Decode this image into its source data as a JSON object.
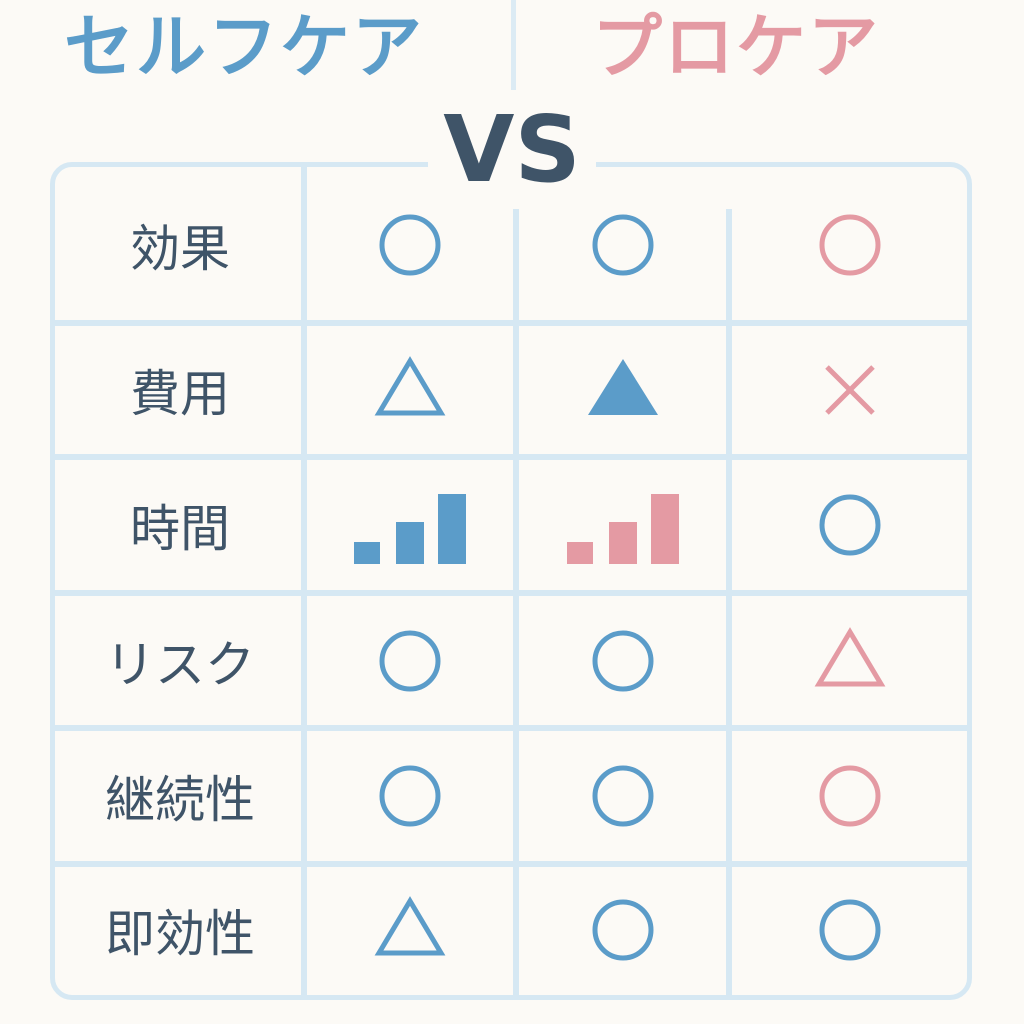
{
  "header": {
    "self_title": "セルフケア",
    "pro_title": "プロケア",
    "vs": "VS"
  },
  "colors": {
    "blue": "#5b9cc9",
    "pink": "#e49aa3",
    "text": "#3f5468",
    "grid": "#d6e8f3"
  },
  "rows": [
    {
      "label": "効果",
      "marks": [
        {
          "shape": "circle",
          "color": "blue"
        },
        {
          "shape": "circle",
          "color": "blue"
        },
        {
          "shape": "circle",
          "color": "pink"
        }
      ]
    },
    {
      "label": "費用",
      "marks": [
        {
          "shape": "triangle",
          "color": "blue"
        },
        {
          "shape": "triangle-filled",
          "color": "blue"
        },
        {
          "shape": "cross",
          "color": "pink"
        }
      ]
    },
    {
      "label": "時間",
      "marks": [
        {
          "shape": "bars",
          "color": "blue"
        },
        {
          "shape": "bars",
          "color": "pink"
        },
        {
          "shape": "circle",
          "color": "blue"
        }
      ]
    },
    {
      "label": "リスク",
      "marks": [
        {
          "shape": "circle",
          "color": "blue"
        },
        {
          "shape": "circle",
          "color": "blue"
        },
        {
          "shape": "triangle",
          "color": "pink"
        }
      ]
    },
    {
      "label": "継続性",
      "marks": [
        {
          "shape": "circle",
          "color": "blue"
        },
        {
          "shape": "circle",
          "color": "blue"
        },
        {
          "shape": "circle",
          "color": "pink"
        }
      ]
    },
    {
      "label": "即効性",
      "marks": [
        {
          "shape": "triangle",
          "color": "blue"
        },
        {
          "shape": "circle",
          "color": "blue"
        },
        {
          "shape": "circle",
          "color": "blue"
        }
      ]
    }
  ]
}
